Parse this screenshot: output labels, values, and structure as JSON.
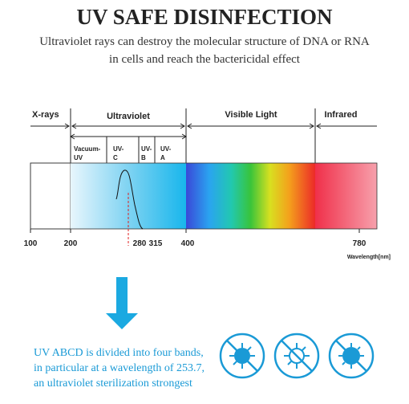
{
  "header": {
    "title": "UV SAFE DISINFECTION",
    "subtitle": [
      "Ultraviolet rays can destroy the molecular structure of DNA or RNA",
      "in cells and reach the bactericidal effect"
    ]
  },
  "spectrum": {
    "regions": [
      "X-rays",
      "Ultraviolet",
      "Visible Light",
      "Infrared"
    ],
    "bands": [
      [
        "Vacuum-",
        "UV"
      ],
      [
        "UV-",
        "C"
      ],
      [
        "UV-",
        "B"
      ],
      [
        "UV-",
        "A"
      ]
    ],
    "axis_labels": [
      "100",
      "200",
      "280",
      "315",
      "400",
      "780"
    ],
    "axis_title": "Wavelength[nm]"
  },
  "note": [
    "UV ABCD is divided into four bands,",
    "in particular at a wavelength of 253.7,",
    "an ultraviolet sterilization strongest"
  ]
}
